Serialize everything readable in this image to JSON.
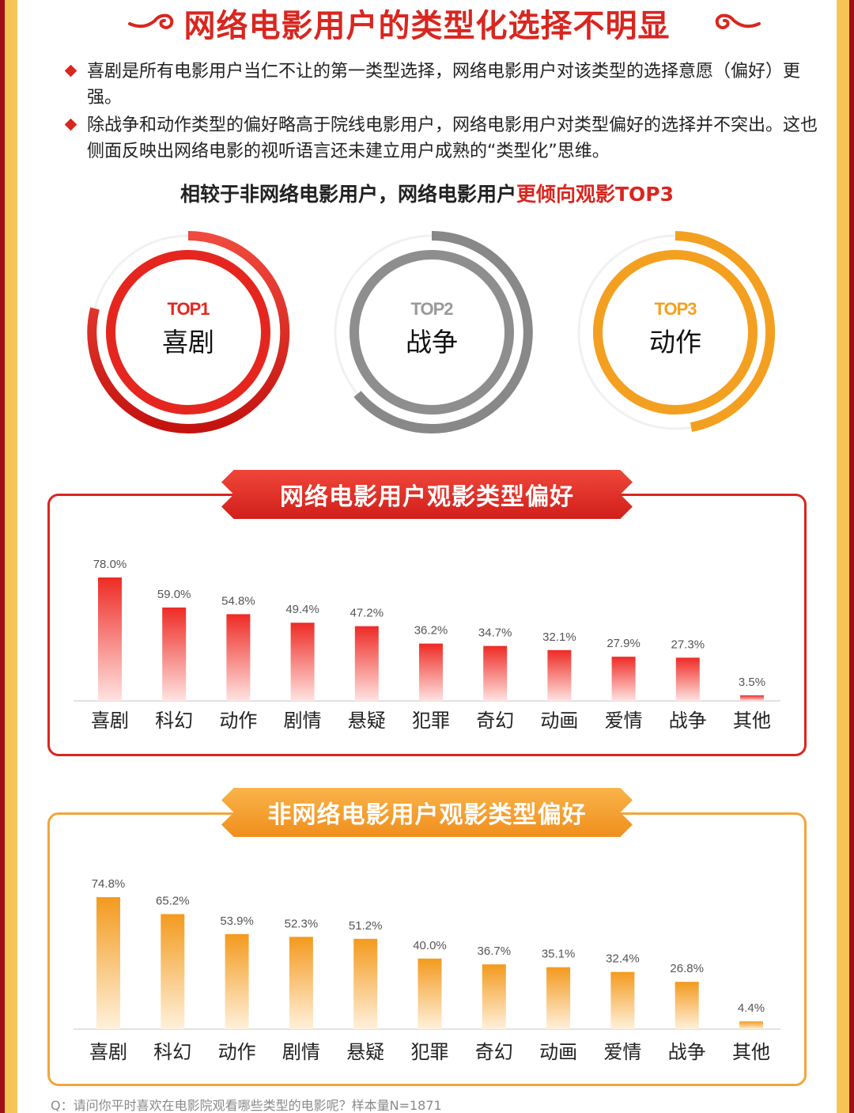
{
  "title": "网络电影用户的类型化选择不明显",
  "bullets": [
    "喜剧是所有电影用户当仁不让的第一类型选择，网络电影用户对该类型的选择意愿（偏好）更强。",
    "除战争和动作类型的偏好略高于院线电影用户，网络电影用户对类型偏好的选择并不突出。这也侧面反映出网络电影的视听语言还未建立用户成熟的“类型化”思维。"
  ],
  "subhead": {
    "prefix": "相较于非网络电影用户，网络电影用户",
    "highlight": "更倾向观影TOP3"
  },
  "top3": [
    {
      "rank": "TOP1",
      "genre": "喜剧",
      "color": "#e5261f"
    },
    {
      "rank": "TOP2",
      "genre": "战争",
      "color": "#8e8e8e"
    },
    {
      "rank": "TOP3",
      "genre": "动作",
      "color": "#f3a020"
    }
  ],
  "colors": {
    "red": "#d9261f",
    "orange": "#f3a53a"
  },
  "chart_data": [
    {
      "type": "bar",
      "title": "网络电影用户观影类型偏好",
      "categories": [
        "喜剧",
        "科幻",
        "动作",
        "剧情",
        "悬疑",
        "犯罪",
        "奇幻",
        "动画",
        "爱情",
        "战争",
        "其他"
      ],
      "values": [
        78.0,
        59.0,
        54.8,
        49.4,
        47.2,
        36.2,
        34.7,
        32.1,
        27.9,
        27.3,
        3.5
      ],
      "labels": [
        "78.0%",
        "59.0%",
        "54.8%",
        "49.4%",
        "47.2%",
        "36.2%",
        "34.7%",
        "32.1%",
        "27.9%",
        "27.3%",
        "3.5%"
      ],
      "color": "#ee2b25"
    },
    {
      "type": "bar",
      "title": "非网络电影用户观影类型偏好",
      "categories": [
        "喜剧",
        "科幻",
        "动作",
        "剧情",
        "悬疑",
        "犯罪",
        "奇幻",
        "动画",
        "爱情",
        "战争",
        "其他"
      ],
      "values": [
        74.8,
        65.2,
        53.9,
        52.3,
        51.2,
        40.0,
        36.7,
        35.1,
        32.4,
        26.8,
        4.4
      ],
      "labels": [
        "74.8%",
        "65.2%",
        "53.9%",
        "52.3%",
        "51.2%",
        "40.0%",
        "36.7%",
        "35.1%",
        "32.4%",
        "26.8%",
        "4.4%"
      ],
      "color": "#f39a1e"
    }
  ],
  "footnote": "Q：请问你平时喜欢在电影院观看哪些类型的电影呢？样本量N=1871"
}
